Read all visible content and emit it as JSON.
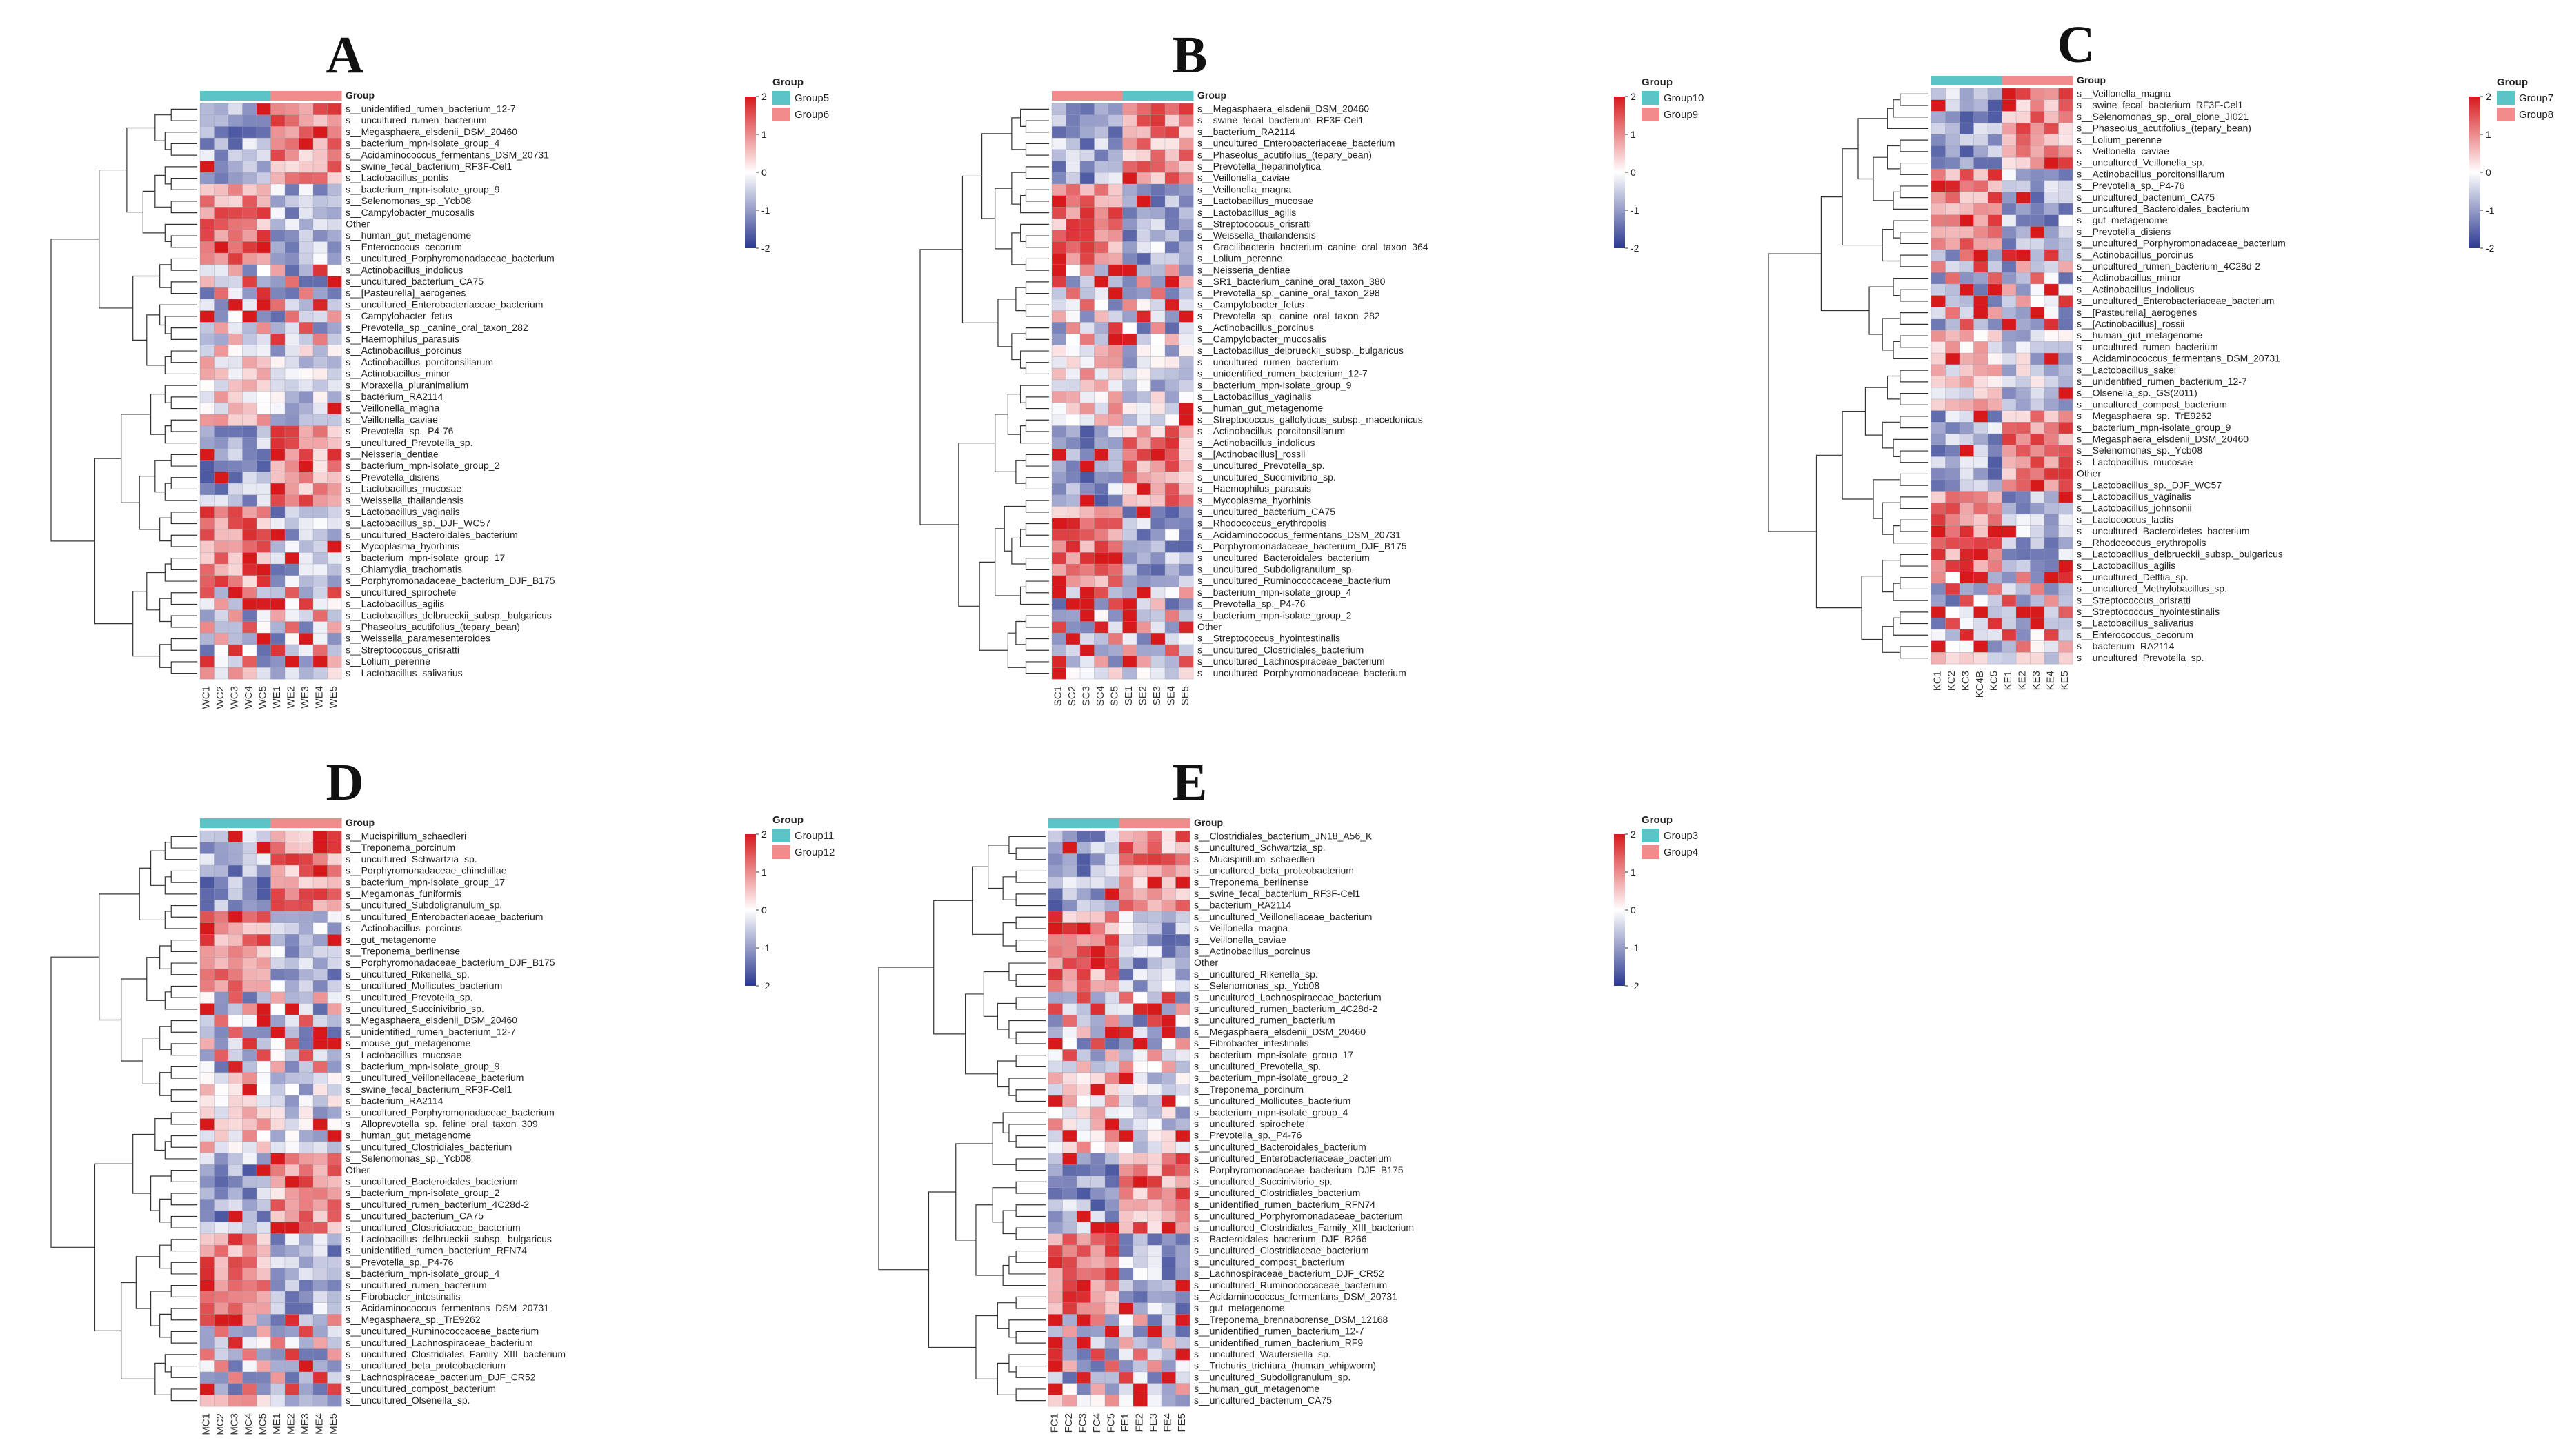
{
  "chart_data": [
    {
      "type": "heatmap",
      "title": "A",
      "legend_title": "Group",
      "groups": [
        {
          "name": "Group5",
          "color": "#5bc4c6",
          "columns": [
            "WC1",
            "WC2",
            "WC3",
            "WC4",
            "WC5"
          ]
        },
        {
          "name": "Group6",
          "color": "#f28c8c",
          "columns": [
            "WE1",
            "WE2",
            "WE3",
            "WE4",
            "WE5"
          ]
        }
      ],
      "columns": [
        "WC1",
        "WC2",
        "WC3",
        "WC4",
        "WC5",
        "WE1",
        "WE2",
        "WE3",
        "WE4",
        "WE5"
      ],
      "scale": {
        "min": -2,
        "max": 2,
        "ticks": [
          2,
          1,
          0,
          -1,
          -2
        ],
        "colors": [
          "#2b3990",
          "#ffffff",
          "#d7191c"
        ]
      },
      "rows": [
        "s__unidentified_rumen_bacterium_12-7",
        "s__uncultured_rumen_bacterium",
        "s__Megasphaera_elsdenii_DSM_20460",
        "s__bacterium_mpn-isolate_group_4",
        "s__Acidaminococcus_fermentans_DSM_20731",
        "s__swine_fecal_bacterium_RF3F-Cel1",
        "s__Lactobacillus_pontis",
        "s__bacterium_mpn-isolate_group_9",
        "s__Selenomonas_sp._Ycb08",
        "s__Campylobacter_mucosalis",
        "Other",
        "s__human_gut_metagenome",
        "s__Enterococcus_cecorum",
        "s__uncultured_Porphyromonadaceae_bacterium",
        "s__Actinobacillus_indolicus",
        "s__uncultured_bacterium_CA75",
        "s__[Pasteurella]_aerogenes",
        "s__uncultured_Enterobacteriaceae_bacterium",
        "s__Campylobacter_fetus",
        "s__Prevotella_sp._canine_oral_taxon_282",
        "s__Haemophilus_parasuis",
        "s__Actinobacillus_porcinus",
        "s__Actinobacillus_porcitonsillarum",
        "s__Actinobacillus_minor",
        "s__Moraxella_pluranimalium",
        "s__bacterium_RA2114",
        "s__Veillonella_magna",
        "s__Veillonella_caviae",
        "s__Prevotella_sp._P4-76",
        "s__uncultured_Prevotella_sp.",
        "s__Neisseria_dentiae",
        "s__bacterium_mpn-isolate_group_2",
        "s__Prevotella_disiens",
        "s__Lactobacillus_mucosae",
        "s__Weissella_thailandensis",
        "s__Lactobacillus_vaginalis",
        "s__Lactobacillus_sp._DJF_WC57",
        "s__uncultured_Bacteroidales_bacterium",
        "s__Mycoplasma_hyorhinis",
        "s__bacterium_mpn-isolate_group_17",
        "s__Chlamydia_trachomatis",
        "s__Porphyromonadaceae_bacterium_DJF_B175",
        "s__uncultured_spirochete",
        "s__Lactobacillus_agilis",
        "s__Lactobacillus_delbrueckii_subsp._bulgaricus",
        "s__Phaseolus_acutifolius_(tepary_bean)",
        "s__Weissella_paramesenteroides",
        "s__Streptococcus_orisratti",
        "s__Lolium_perenne",
        "s__Lactobacillus_salivarius"
      ]
    },
    {
      "type": "heatmap",
      "title": "B",
      "legend_title": "Group",
      "groups": [
        {
          "name": "Group10",
          "color": "#5bc4c6",
          "columns": [
            "SE1",
            "SE2",
            "SE3",
            "SE4",
            "SE5"
          ]
        },
        {
          "name": "Group9",
          "color": "#f28c8c",
          "columns": [
            "SC1",
            "SC2",
            "SC3",
            "SC4",
            "SC5"
          ]
        }
      ],
      "columns": [
        "SC1",
        "SC2",
        "SC3",
        "SC4",
        "SC5",
        "SE1",
        "SE2",
        "SE3",
        "SE4",
        "SE5"
      ],
      "scale": {
        "min": -2,
        "max": 2,
        "ticks": [
          2,
          1,
          0,
          -1,
          -2
        ],
        "colors": [
          "#2b3990",
          "#ffffff",
          "#d7191c"
        ]
      },
      "rows": [
        "s__Megasphaera_elsdenii_DSM_20460",
        "s__swine_fecal_bacterium_RF3F-Cel1",
        "s__bacterium_RA2114",
        "s__uncultured_Enterobacteriaceae_bacterium",
        "s__Phaseolus_acutifolius_(tepary_bean)",
        "s__Prevotella_heparinolytica",
        "s__Veillonella_caviae",
        "s__Veillonella_magna",
        "s__Lactobacillus_mucosae",
        "s__Lactobacillus_agilis",
        "s__Streptococcus_orisratti",
        "s__Weissella_thailandensis",
        "s__Gracilibacteria_bacterium_canine_oral_taxon_364",
        "s__Lolium_perenne",
        "s__Neisseria_dentiae",
        "s__SR1_bacterium_canine_oral_taxon_380",
        "s__Prevotella_sp._canine_oral_taxon_298",
        "s__Campylobacter_fetus",
        "s__Prevotella_sp._canine_oral_taxon_282",
        "s__Actinobacillus_porcinus",
        "s__Campylobacter_mucosalis",
        "s__Lactobacillus_delbrueckii_subsp._bulgaricus",
        "s__uncultured_rumen_bacterium",
        "s__unidentified_rumen_bacterium_12-7",
        "s__bacterium_mpn-isolate_group_9",
        "s__Lactobacillus_vaginalis",
        "s__human_gut_metagenome",
        "s__Streptococcus_gallolyticus_subsp._macedonicus",
        "s__Actinobacillus_porcitonsillarum",
        "s__Actinobacillus_indolicus",
        "s__[Actinobacillus]_rossii",
        "s__uncultured_Prevotella_sp.",
        "s__uncultured_Succinivibrio_sp.",
        "s__Haemophilus_parasuis",
        "s__Mycoplasma_hyorhinis",
        "s__uncultured_bacterium_CA75",
        "s__Rhodococcus_erythropolis",
        "s__Acidaminococcus_fermentans_DSM_20731",
        "s__Porphyromonadaceae_bacterium_DJF_B175",
        "s__uncultured_Bacteroidales_bacterium",
        "s__uncultured_Subdoligranulum_sp.",
        "s__uncultured_Ruminococcaceae_bacterium",
        "s__bacterium_mpn-isolate_group_4",
        "s__Prevotella_sp._P4-76",
        "s__bacterium_mpn-isolate_group_2",
        "Other",
        "s__Streptococcus_hyointestinalis",
        "s__uncultured_Clostridiales_bacterium",
        "s__uncultured_Lachnospiraceae_bacterium",
        "s__uncultured_Porphyromonadaceae_bacterium"
      ]
    },
    {
      "type": "heatmap",
      "title": "C",
      "legend_title": "Group",
      "groups": [
        {
          "name": "Group7",
          "color": "#5bc4c6",
          "columns": [
            "KC1",
            "KC2",
            "KC3",
            "KC4B",
            "KC5"
          ]
        },
        {
          "name": "Group8",
          "color": "#f28c8c",
          "columns": [
            "KE1",
            "KE2",
            "KE3",
            "KE4",
            "KE5"
          ]
        }
      ],
      "columns": [
        "KC1",
        "KC2",
        "KC3",
        "KC4B",
        "KC5",
        "KE1",
        "KE2",
        "KE3",
        "KE4",
        "KE5"
      ],
      "scale": {
        "min": -2,
        "max": 2,
        "ticks": [
          2,
          1,
          0,
          -1,
          -2
        ],
        "colors": [
          "#2b3990",
          "#ffffff",
          "#d7191c"
        ]
      },
      "rows": [
        "s__Veillonella_magna",
        "s__swine_fecal_bacterium_RF3F-Cel1",
        "s__Selenomonas_sp._oral_clone_JI021",
        "s__Phaseolus_acutifolius_(tepary_bean)",
        "s__Lolium_perenne",
        "s__Veillonella_caviae",
        "s__uncultured_Veillonella_sp.",
        "s__Actinobacillus_porcitonsillarum",
        "s__Prevotella_sp._P4-76",
        "s__uncultured_bacterium_CA75",
        "s__uncultured_Bacteroidales_bacterium",
        "s__gut_metagenome",
        "s__Prevotella_disiens",
        "s__uncultured_Porphyromonadaceae_bacterium",
        "s__Actinobacillus_porcinus",
        "s__uncultured_rumen_bacterium_4C28d-2",
        "s__Actinobacillus_minor",
        "s__Actinobacillus_indolicus",
        "s__uncultured_Enterobacteriaceae_bacterium",
        "s__[Pasteurella]_aerogenes",
        "s__[Actinobacillus]_rossii",
        "s__human_gut_metagenome",
        "s__uncultured_rumen_bacterium",
        "s__Acidaminococcus_fermentans_DSM_20731",
        "s__Lactobacillus_sakei",
        "s__unidentified_rumen_bacterium_12-7",
        "s__Olsenella_sp._GS(2011)",
        "s__uncultured_compost_bacterium",
        "s__Megasphaera_sp._TrE9262",
        "s__bacterium_mpn-isolate_group_9",
        "s__Megasphaera_elsdenii_DSM_20460",
        "s__Selenomonas_sp._Ycb08",
        "s__Lactobacillus_mucosae",
        "Other",
        "s__Lactobacillus_sp._DJF_WC57",
        "s__Lactobacillus_vaginalis",
        "s__Lactobacillus_johnsonii",
        "s__Lactococcus_lactis",
        "s__uncultured_Bacteroidetes_bacterium",
        "s__Rhodococcus_erythropolis",
        "s__Lactobacillus_delbrueckii_subsp._bulgaricus",
        "s__Lactobacillus_agilis",
        "s__uncultured_Delftia_sp.",
        "s__uncultured_Methylobacillus_sp.",
        "s__Streptococcus_orisratti",
        "s__Streptococcus_hyointestinalis",
        "s__Lactobacillus_salivarius",
        "s__Enterococcus_cecorum",
        "s__bacterium_RA2114",
        "s__uncultured_Prevotella_sp."
      ]
    },
    {
      "type": "heatmap",
      "title": "D",
      "legend_title": "Group",
      "groups": [
        {
          "name": "Group11",
          "color": "#5bc4c6",
          "columns": [
            "MC1",
            "MC2",
            "MC3",
            "MC4",
            "MC5"
          ]
        },
        {
          "name": "Group12",
          "color": "#f28c8c",
          "columns": [
            "ME1",
            "ME2",
            "ME3",
            "ME4",
            "ME5"
          ]
        }
      ],
      "columns": [
        "MC1",
        "MC2",
        "MC3",
        "MC4",
        "MC5",
        "ME1",
        "ME2",
        "ME3",
        "ME4",
        "ME5"
      ],
      "scale": {
        "min": -2,
        "max": 2,
        "ticks": [
          2,
          1,
          0,
          -1,
          -2
        ],
        "colors": [
          "#2b3990",
          "#ffffff",
          "#d7191c"
        ]
      },
      "rows": [
        "s__Mucispirillum_schaedleri",
        "s__Treponema_porcinum",
        "s__uncultured_Schwartzia_sp.",
        "s__Porphyromonadaceae_chinchillae",
        "s__bacterium_mpn-isolate_group_17",
        "s__Megamonas_funiformis",
        "s__uncultured_Subdoligranulum_sp.",
        "s__uncultured_Enterobacteriaceae_bacterium",
        "s__Actinobacillus_porcinus",
        "s__gut_metagenome",
        "s__Treponema_berlinense",
        "s__Porphyromonadaceae_bacterium_DJF_B175",
        "s__uncultured_Rikenella_sp.",
        "s__uncultured_Mollicutes_bacterium",
        "s__uncultured_Prevotella_sp.",
        "s__uncultured_Succinivibrio_sp.",
        "s__Megasphaera_elsdenii_DSM_20460",
        "s__unidentified_rumen_bacterium_12-7",
        "s__mouse_gut_metagenome",
        "s__Lactobacillus_mucosae",
        "s__bacterium_mpn-isolate_group_9",
        "s__uncultured_Veillonellaceae_bacterium",
        "s__swine_fecal_bacterium_RF3F-Cel1",
        "s__bacterium_RA2114",
        "s__uncultured_Porphyromonadaceae_bacterium",
        "s__Alloprevotella_sp._feline_oral_taxon_309",
        "s__human_gut_metagenome",
        "s__uncultured_Clostridiales_bacterium",
        "s__Selenomonas_sp._Ycb08",
        "Other",
        "s__uncultured_Bacteroidales_bacterium",
        "s__bacterium_mpn-isolate_group_2",
        "s__uncultured_rumen_bacterium_4C28d-2",
        "s__uncultured_bacterium_CA75",
        "s__uncultured_Clostridiaceae_bacterium",
        "s__Lactobacillus_delbrueckii_subsp._bulgaricus",
        "s__unidentified_rumen_bacterium_RFN74",
        "s__Prevotella_sp._P4-76",
        "s__bacterium_mpn-isolate_group_4",
        "s__uncultured_rumen_bacterium",
        "s__Fibrobacter_intestinalis",
        "s__Acidaminococcus_fermentans_DSM_20731",
        "s__Megasphaera_sp._TrE9262",
        "s__uncultured_Ruminococcaceae_bacterium",
        "s__uncultured_Lachnospiraceae_bacterium",
        "s__uncultured_Clostridiales_Family_XIII_bacterium",
        "s__uncultured_beta_proteobacterium",
        "s__Lachnospiraceae_bacterium_DJF_CR52",
        "s__uncultured_compost_bacterium",
        "s__uncultured_Olsenella_sp."
      ]
    },
    {
      "type": "heatmap",
      "title": "E",
      "legend_title": "Group",
      "groups": [
        {
          "name": "Group3",
          "color": "#5bc4c6",
          "columns": [
            "FC1",
            "FC2",
            "FC3",
            "FC4",
            "FC5"
          ]
        },
        {
          "name": "Group4",
          "color": "#f28c8c",
          "columns": [
            "FE1",
            "FE2",
            "FE3",
            "FE4",
            "FE5"
          ]
        }
      ],
      "columns": [
        "FC1",
        "FC2",
        "FC3",
        "FC4",
        "FC5",
        "FE1",
        "FE2",
        "FE3",
        "FE4",
        "FE5"
      ],
      "scale": {
        "min": -2,
        "max": 2,
        "ticks": [
          2,
          1,
          0,
          -1,
          -2
        ],
        "colors": [
          "#2b3990",
          "#ffffff",
          "#d7191c"
        ]
      },
      "rows": [
        "s__Clostridiales_bacterium_JN18_A56_K",
        "s__uncultured_Schwartzia_sp.",
        "s__Mucispirillum_schaedleri",
        "s__uncultured_beta_proteobacterium",
        "s__Treponema_berlinense",
        "s__swine_fecal_bacterium_RF3F-Cel1",
        "s__bacterium_RA2114",
        "s__uncultured_Veillonellaceae_bacterium",
        "s__Veillonella_magna",
        "s__Veillonella_caviae",
        "s__Actinobacillus_porcinus",
        "Other",
        "s__uncultured_Rikenella_sp.",
        "s__Selenomonas_sp._Ycb08",
        "s__uncultured_Lachnospiraceae_bacterium",
        "s__uncultured_rumen_bacterium_4C28d-2",
        "s__uncultured_rumen_bacterium",
        "s__Megasphaera_elsdenii_DSM_20460",
        "s__Fibrobacter_intestinalis",
        "s__bacterium_mpn-isolate_group_17",
        "s__uncultured_Prevotella_sp.",
        "s__bacterium_mpn-isolate_group_2",
        "s__Treponema_porcinum",
        "s__uncultured_Mollicutes_bacterium",
        "s__bacterium_mpn-isolate_group_4",
        "s__uncultured_spirochete",
        "s__Prevotella_sp._P4-76",
        "s__uncultured_Bacteroidales_bacterium",
        "s__uncultured_Enterobacteriaceae_bacterium",
        "s__Porphyromonadaceae_bacterium_DJF_B175",
        "s__uncultured_Succinivibrio_sp.",
        "s__uncultured_Clostridiales_bacterium",
        "s__unidentified_rumen_bacterium_RFN74",
        "s__uncultured_Porphyromonadaceae_bacterium",
        "s__uncultured_Clostridiales_Family_XIII_bacterium",
        "s__Bacteroidales_bacterium_DJF_B266",
        "s__uncultured_Clostridiaceae_bacterium",
        "s__uncultured_compost_bacterium",
        "s__Lachnospiraceae_bacterium_DJF_CR52",
        "s__uncultured_Ruminococcaceae_bacterium",
        "s__Acidaminococcus_fermentans_DSM_20731",
        "s__gut_metagenome",
        "s__Treponema_brennaborense_DSM_12168",
        "s__unidentified_rumen_bacterium_12-7",
        "s__unidentified_rumen_bacterium_RF9",
        "s__uncultured_Wautersiella_sp.",
        "s__Trichuris_trichiura_(human_whipworm)",
        "s__uncultured_Subdoligranulum_sp.",
        "s__human_gut_metagenome",
        "s__uncultured_bacterium_CA75"
      ]
    }
  ]
}
